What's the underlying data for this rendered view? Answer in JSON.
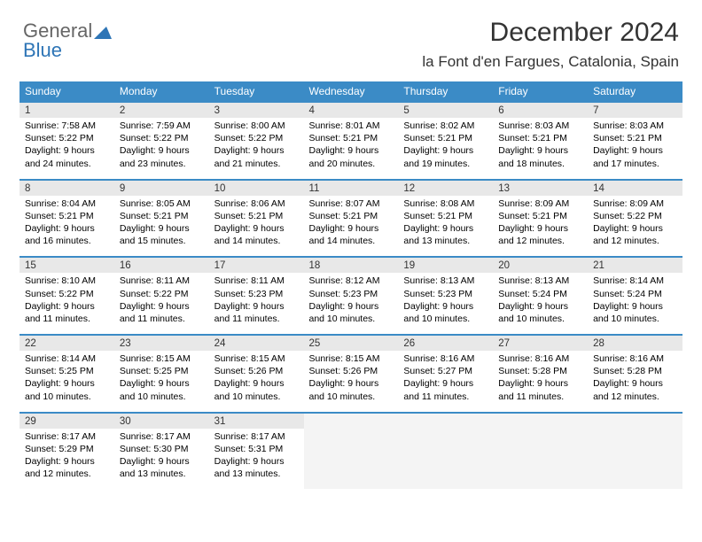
{
  "brand": {
    "text1": "General",
    "text2": "Blue",
    "triangle_color": "#2e75b6"
  },
  "title": "December 2024",
  "location": "la Font d'en Fargues, Catalonia, Spain",
  "colors": {
    "header_bg": "#3b8bc6",
    "header_text": "#ffffff",
    "daynum_bg": "#e8e8e8",
    "row_divider": "#3b8bc6",
    "body_text": "#000000",
    "title_text": "#333333"
  },
  "weekdays": [
    "Sunday",
    "Monday",
    "Tuesday",
    "Wednesday",
    "Thursday",
    "Friday",
    "Saturday"
  ],
  "weeks": [
    {
      "days": [
        {
          "num": "1",
          "sunrise": "Sunrise: 7:58 AM",
          "sunset": "Sunset: 5:22 PM",
          "day1": "Daylight: 9 hours",
          "day2": "and 24 minutes."
        },
        {
          "num": "2",
          "sunrise": "Sunrise: 7:59 AM",
          "sunset": "Sunset: 5:22 PM",
          "day1": "Daylight: 9 hours",
          "day2": "and 23 minutes."
        },
        {
          "num": "3",
          "sunrise": "Sunrise: 8:00 AM",
          "sunset": "Sunset: 5:22 PM",
          "day1": "Daylight: 9 hours",
          "day2": "and 21 minutes."
        },
        {
          "num": "4",
          "sunrise": "Sunrise: 8:01 AM",
          "sunset": "Sunset: 5:21 PM",
          "day1": "Daylight: 9 hours",
          "day2": "and 20 minutes."
        },
        {
          "num": "5",
          "sunrise": "Sunrise: 8:02 AM",
          "sunset": "Sunset: 5:21 PM",
          "day1": "Daylight: 9 hours",
          "day2": "and 19 minutes."
        },
        {
          "num": "6",
          "sunrise": "Sunrise: 8:03 AM",
          "sunset": "Sunset: 5:21 PM",
          "day1": "Daylight: 9 hours",
          "day2": "and 18 minutes."
        },
        {
          "num": "7",
          "sunrise": "Sunrise: 8:03 AM",
          "sunset": "Sunset: 5:21 PM",
          "day1": "Daylight: 9 hours",
          "day2": "and 17 minutes."
        }
      ]
    },
    {
      "days": [
        {
          "num": "8",
          "sunrise": "Sunrise: 8:04 AM",
          "sunset": "Sunset: 5:21 PM",
          "day1": "Daylight: 9 hours",
          "day2": "and 16 minutes."
        },
        {
          "num": "9",
          "sunrise": "Sunrise: 8:05 AM",
          "sunset": "Sunset: 5:21 PM",
          "day1": "Daylight: 9 hours",
          "day2": "and 15 minutes."
        },
        {
          "num": "10",
          "sunrise": "Sunrise: 8:06 AM",
          "sunset": "Sunset: 5:21 PM",
          "day1": "Daylight: 9 hours",
          "day2": "and 14 minutes."
        },
        {
          "num": "11",
          "sunrise": "Sunrise: 8:07 AM",
          "sunset": "Sunset: 5:21 PM",
          "day1": "Daylight: 9 hours",
          "day2": "and 14 minutes."
        },
        {
          "num": "12",
          "sunrise": "Sunrise: 8:08 AM",
          "sunset": "Sunset: 5:21 PM",
          "day1": "Daylight: 9 hours",
          "day2": "and 13 minutes."
        },
        {
          "num": "13",
          "sunrise": "Sunrise: 8:09 AM",
          "sunset": "Sunset: 5:21 PM",
          "day1": "Daylight: 9 hours",
          "day2": "and 12 minutes."
        },
        {
          "num": "14",
          "sunrise": "Sunrise: 8:09 AM",
          "sunset": "Sunset: 5:22 PM",
          "day1": "Daylight: 9 hours",
          "day2": "and 12 minutes."
        }
      ]
    },
    {
      "days": [
        {
          "num": "15",
          "sunrise": "Sunrise: 8:10 AM",
          "sunset": "Sunset: 5:22 PM",
          "day1": "Daylight: 9 hours",
          "day2": "and 11 minutes."
        },
        {
          "num": "16",
          "sunrise": "Sunrise: 8:11 AM",
          "sunset": "Sunset: 5:22 PM",
          "day1": "Daylight: 9 hours",
          "day2": "and 11 minutes."
        },
        {
          "num": "17",
          "sunrise": "Sunrise: 8:11 AM",
          "sunset": "Sunset: 5:23 PM",
          "day1": "Daylight: 9 hours",
          "day2": "and 11 minutes."
        },
        {
          "num": "18",
          "sunrise": "Sunrise: 8:12 AM",
          "sunset": "Sunset: 5:23 PM",
          "day1": "Daylight: 9 hours",
          "day2": "and 10 minutes."
        },
        {
          "num": "19",
          "sunrise": "Sunrise: 8:13 AM",
          "sunset": "Sunset: 5:23 PM",
          "day1": "Daylight: 9 hours",
          "day2": "and 10 minutes."
        },
        {
          "num": "20",
          "sunrise": "Sunrise: 8:13 AM",
          "sunset": "Sunset: 5:24 PM",
          "day1": "Daylight: 9 hours",
          "day2": "and 10 minutes."
        },
        {
          "num": "21",
          "sunrise": "Sunrise: 8:14 AM",
          "sunset": "Sunset: 5:24 PM",
          "day1": "Daylight: 9 hours",
          "day2": "and 10 minutes."
        }
      ]
    },
    {
      "days": [
        {
          "num": "22",
          "sunrise": "Sunrise: 8:14 AM",
          "sunset": "Sunset: 5:25 PM",
          "day1": "Daylight: 9 hours",
          "day2": "and 10 minutes."
        },
        {
          "num": "23",
          "sunrise": "Sunrise: 8:15 AM",
          "sunset": "Sunset: 5:25 PM",
          "day1": "Daylight: 9 hours",
          "day2": "and 10 minutes."
        },
        {
          "num": "24",
          "sunrise": "Sunrise: 8:15 AM",
          "sunset": "Sunset: 5:26 PM",
          "day1": "Daylight: 9 hours",
          "day2": "and 10 minutes."
        },
        {
          "num": "25",
          "sunrise": "Sunrise: 8:15 AM",
          "sunset": "Sunset: 5:26 PM",
          "day1": "Daylight: 9 hours",
          "day2": "and 10 minutes."
        },
        {
          "num": "26",
          "sunrise": "Sunrise: 8:16 AM",
          "sunset": "Sunset: 5:27 PM",
          "day1": "Daylight: 9 hours",
          "day2": "and 11 minutes."
        },
        {
          "num": "27",
          "sunrise": "Sunrise: 8:16 AM",
          "sunset": "Sunset: 5:28 PM",
          "day1": "Daylight: 9 hours",
          "day2": "and 11 minutes."
        },
        {
          "num": "28",
          "sunrise": "Sunrise: 8:16 AM",
          "sunset": "Sunset: 5:28 PM",
          "day1": "Daylight: 9 hours",
          "day2": "and 12 minutes."
        }
      ]
    },
    {
      "days": [
        {
          "num": "29",
          "sunrise": "Sunrise: 8:17 AM",
          "sunset": "Sunset: 5:29 PM",
          "day1": "Daylight: 9 hours",
          "day2": "and 12 minutes."
        },
        {
          "num": "30",
          "sunrise": "Sunrise: 8:17 AM",
          "sunset": "Sunset: 5:30 PM",
          "day1": "Daylight: 9 hours",
          "day2": "and 13 minutes."
        },
        {
          "num": "31",
          "sunrise": "Sunrise: 8:17 AM",
          "sunset": "Sunset: 5:31 PM",
          "day1": "Daylight: 9 hours",
          "day2": "and 13 minutes."
        },
        {
          "empty": true
        },
        {
          "empty": true
        },
        {
          "empty": true
        },
        {
          "empty": true
        }
      ]
    }
  ]
}
